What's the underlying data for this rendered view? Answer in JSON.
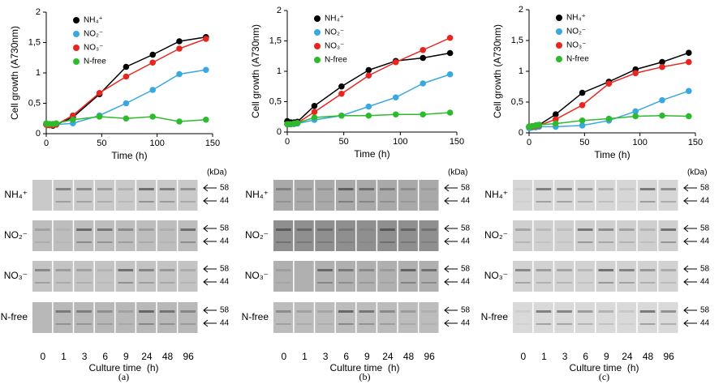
{
  "chart_data": [
    {
      "type": "line",
      "xlabel": "Time (h)",
      "ylabel": "Cell growth (A730nm)",
      "x": [
        0,
        1,
        3,
        6,
        9,
        24,
        48,
        72,
        96,
        120,
        144
      ],
      "xlim": [
        0,
        150
      ],
      "xticks": [
        0,
        50,
        100,
        150
      ],
      "ylim": [
        0,
        2
      ],
      "yticks": [
        0,
        {
          "value": 0.5,
          "label": "0,5"
        },
        1,
        {
          "value": 1.5,
          "label": "1,5"
        },
        2
      ],
      "series": [
        {
          "name": "NH₄⁺",
          "color": "#000000",
          "values": [
            0.15,
            0.15,
            0.14,
            0.13,
            0.15,
            0.27,
            0.65,
            1.1,
            1.3,
            1.52,
            1.59
          ]
        },
        {
          "name": "NO₂⁻",
          "color": "#3aa8e0",
          "values": [
            0.15,
            0.14,
            0.14,
            0.14,
            0.15,
            0.17,
            0.3,
            0.5,
            0.72,
            0.98,
            1.05
          ]
        },
        {
          "name": "NO₃⁻",
          "color": "#e8261f",
          "values": [
            0.15,
            0.14,
            0.14,
            0.14,
            0.15,
            0.3,
            0.67,
            0.94,
            1.17,
            1.4,
            1.56
          ]
        },
        {
          "name": "N-free",
          "color": "#2dbb2d",
          "values": [
            0.17,
            0.16,
            0.16,
            0.16,
            0.17,
            0.23,
            0.28,
            0.25,
            0.28,
            0.2,
            0.23
          ]
        }
      ]
    },
    {
      "type": "line",
      "xlabel": "Time (h)",
      "ylabel": "Cell growth (A730nm)",
      "x": [
        0,
        1,
        3,
        6,
        9,
        24,
        48,
        72,
        96,
        120,
        144
      ],
      "xlim": [
        0,
        150
      ],
      "xticks": [
        0,
        50,
        100,
        150
      ],
      "ylim": [
        0,
        2
      ],
      "yticks": [
        0,
        {
          "value": 0.5,
          "label": "0,5"
        },
        1,
        {
          "value": 1.5,
          "label": "1,5"
        },
        2
      ],
      "series": [
        {
          "name": "NH₄⁺",
          "color": "#000000",
          "values": [
            0.18,
            0.15,
            0.16,
            0.16,
            0.17,
            0.43,
            0.75,
            1.02,
            1.17,
            1.22,
            1.3
          ]
        },
        {
          "name": "NO₂⁻",
          "color": "#3aa8e0",
          "values": [
            0.13,
            0.13,
            0.13,
            0.13,
            0.14,
            0.2,
            0.27,
            0.42,
            0.57,
            0.8,
            0.95
          ]
        },
        {
          "name": "NO₃⁻",
          "color": "#e8261f",
          "values": [
            0.13,
            0.13,
            0.13,
            0.14,
            0.15,
            0.33,
            0.63,
            0.93,
            1.15,
            1.35,
            1.55
          ]
        },
        {
          "name": "N-free",
          "color": "#2dbb2d",
          "values": [
            0.13,
            0.13,
            0.13,
            0.14,
            0.15,
            0.24,
            0.27,
            0.27,
            0.29,
            0.29,
            0.32
          ]
        }
      ]
    },
    {
      "type": "line",
      "xlabel": "Time (h)",
      "ylabel": "Cell growth (A730nm)",
      "x": [
        0,
        1,
        3,
        6,
        9,
        24,
        48,
        72,
        96,
        120,
        144
      ],
      "xlim": [
        0,
        150
      ],
      "xticks": [
        0,
        50,
        100,
        150
      ],
      "ylim": [
        0,
        2
      ],
      "yticks": [
        0,
        {
          "value": 0.5,
          "label": "0,5"
        },
        1,
        {
          "value": 1.5,
          "label": "1,5"
        },
        2
      ],
      "series": [
        {
          "name": "NH₄⁺",
          "color": "#000000",
          "values": [
            0.1,
            0.1,
            0.11,
            0.12,
            0.13,
            0.3,
            0.65,
            0.83,
            1.03,
            1.15,
            1.3
          ]
        },
        {
          "name": "NO₂⁻",
          "color": "#3aa8e0",
          "values": [
            0.08,
            0.08,
            0.09,
            0.09,
            0.1,
            0.1,
            0.12,
            0.2,
            0.35,
            0.53,
            0.68
          ]
        },
        {
          "name": "NO₃⁻",
          "color": "#e8261f",
          "values": [
            0.1,
            0.1,
            0.1,
            0.11,
            0.12,
            0.22,
            0.45,
            0.8,
            0.97,
            1.07,
            1.15
          ]
        },
        {
          "name": "N-free",
          "color": "#2dbb2d",
          "values": [
            0.1,
            0.1,
            0.11,
            0.12,
            0.13,
            0.15,
            0.2,
            0.23,
            0.27,
            0.28,
            0.27
          ]
        }
      ]
    }
  ],
  "blots": [
    {
      "unit": "(kDa)",
      "markers": [
        "58",
        "44"
      ],
      "rows": [
        "NH₄⁺",
        "NO₂⁻",
        "NO₃⁻",
        "N-free"
      ],
      "lanes": [
        0,
        1,
        3,
        6,
        9,
        24,
        48,
        96
      ],
      "xlabel": "Culture time  (h)",
      "label": "(a)"
    },
    {
      "unit": "(kDa)",
      "markers": [
        "58",
        "44"
      ],
      "rows": [
        "NH₄⁺",
        "NO₂⁻",
        "NO₃⁻",
        "N-free"
      ],
      "lanes": [
        0,
        1,
        3,
        6,
        9,
        24,
        48,
        96
      ],
      "xlabel": "Culture time  (h)",
      "label": "(b)"
    },
    {
      "unit": "(kDa)",
      "markers": [
        "58",
        "44"
      ],
      "rows": [
        "NH₄⁺",
        "NO₂⁻",
        "NO₃⁻",
        "N-free"
      ],
      "lanes": [
        0,
        1,
        3,
        6,
        9,
        24,
        48,
        96
      ],
      "xlabel": "Culture time  (h)",
      "label": "(c)"
    }
  ]
}
